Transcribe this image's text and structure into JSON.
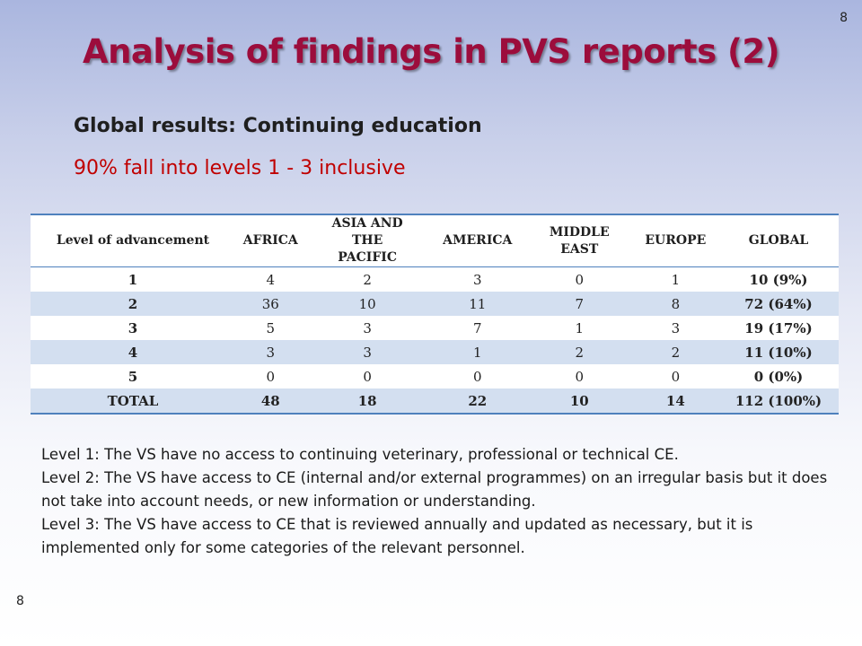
{
  "page_number": "8",
  "title": "Analysis of findings in PVS reports (2)",
  "subtitle": "Global results: Continuing education",
  "highlight": "90% fall into levels 1 - 3 inclusive",
  "table": {
    "headers": [
      "Level of advancement",
      "AFRICA",
      "ASIA AND THE PACIFIC",
      "AMERICA",
      "MIDDLE EAST",
      "EUROPE",
      "GLOBAL"
    ],
    "rows": [
      [
        "1",
        "4",
        "2",
        "3",
        "0",
        "1",
        "10 (9%)"
      ],
      [
        "2",
        "36",
        "10",
        "11",
        "7",
        "8",
        "72 (64%)"
      ],
      [
        "3",
        "5",
        "3",
        "7",
        "1",
        "3",
        "19 (17%)"
      ],
      [
        "4",
        "3",
        "3",
        "1",
        "2",
        "2",
        "11 (10%)"
      ],
      [
        "5",
        "0",
        "0",
        "0",
        "0",
        "0",
        "0 (0%)"
      ],
      [
        "TOTAL",
        "48",
        "18",
        "22",
        "10",
        "14",
        "112 (100%)"
      ]
    ]
  },
  "notes": [
    "Level 1: The VS have no access to continuing veterinary, professional or technical CE.",
    "Level 2: The VS have access to CE (internal and/or external programmes) on an irregular basis but it does not take into account needs, or new information or understanding.",
    "Level 3: The VS have access to CE that is reviewed annually and updated as necessary, but it is implemented only for some categories of the relevant personnel."
  ],
  "colors": {
    "title": "#9c0d3c",
    "highlight": "#c00000",
    "band": "#d3dff0",
    "rule": "#4f81bd"
  }
}
